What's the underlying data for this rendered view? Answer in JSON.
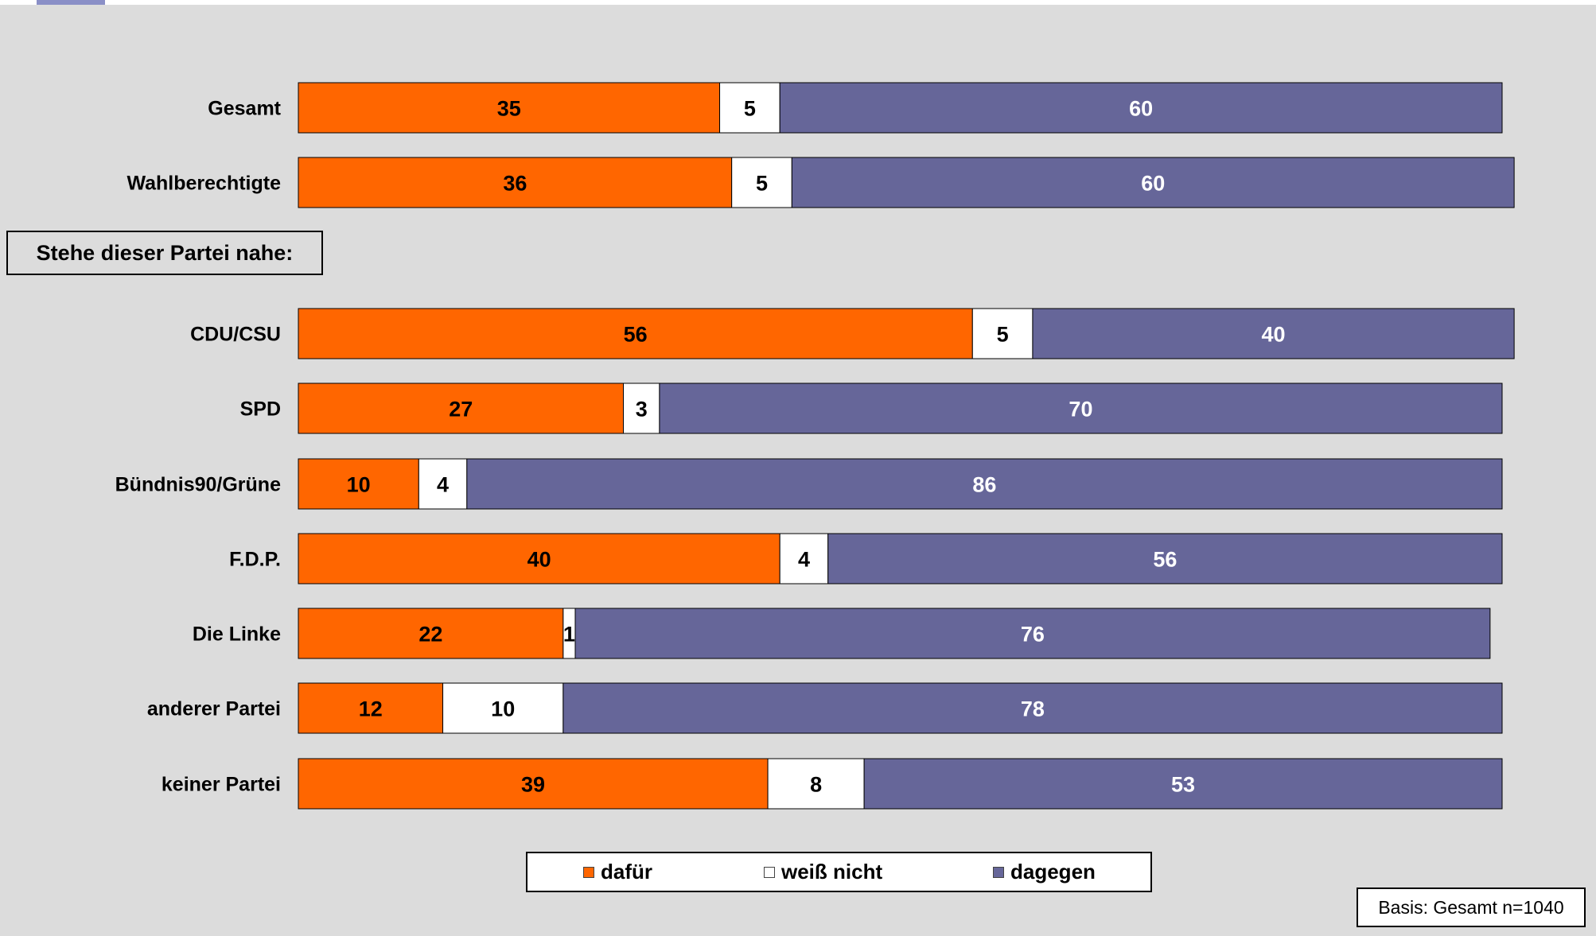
{
  "chart_data": {
    "type": "bar",
    "orientation": "horizontal",
    "stacked": true,
    "title": "",
    "xlim": [
      0,
      100
    ],
    "categories": [
      "Gesamt",
      "Wahlberechtigte",
      "CDU/CSU",
      "SPD",
      "Bündnis90/Grüne",
      "F.D.P.",
      "Die Linke",
      "anderer Partei",
      "keiner Partei"
    ],
    "series": [
      {
        "name": "dafür",
        "color": "#ff6600",
        "label_color": "#000000",
        "values": [
          35,
          36,
          56,
          27,
          10,
          40,
          22,
          12,
          39
        ]
      },
      {
        "name": "weiß nicht",
        "color": "#ffffff",
        "label_color": "#000000",
        "values": [
          5,
          5,
          5,
          3,
          4,
          4,
          1,
          10,
          8
        ]
      },
      {
        "name": "dagegen",
        "color": "#666699",
        "label_color": "#ffffff",
        "values": [
          60,
          60,
          40,
          70,
          86,
          56,
          76,
          78,
          53
        ]
      }
    ],
    "section_label": "Stehe dieser Partei nahe:",
    "section_before_index": 2,
    "legend_position": "bottom",
    "note": "Basis: Gesamt n=1040"
  }
}
